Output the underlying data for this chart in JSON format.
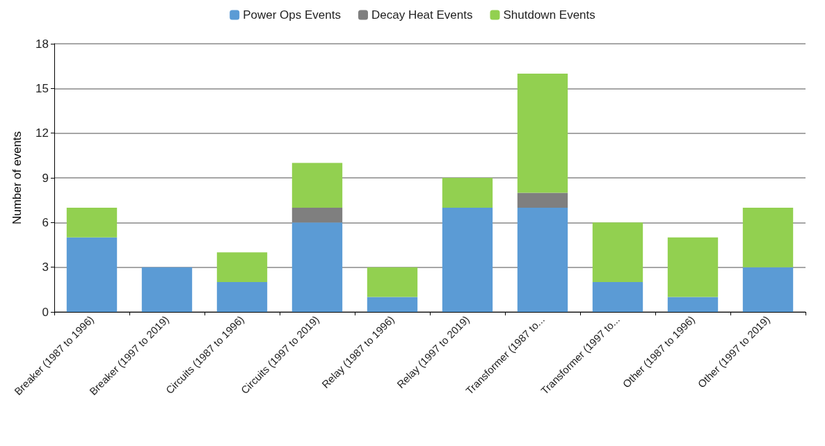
{
  "chart_data": {
    "type": "bar",
    "stacked": true,
    "ylabel": "Number of events",
    "categories": [
      "Breaker (1987 to 1996)",
      "Breaker (1997 to 2019)",
      "Circuits (1987 to 1996)",
      "Circuits (1997 to 2019)",
      "Relay (1987 to 1996)",
      "Relay (1997 to 2019)",
      "Transformer (1987 to...",
      "Transformer (1997 to...",
      "Other (1987 to 1996)",
      "Other (1997 to 2019)"
    ],
    "series": [
      {
        "name": "Power Ops Events",
        "color": "#5b9bd5",
        "values": [
          5,
          3,
          2,
          6,
          1,
          7,
          7,
          2,
          1,
          3
        ]
      },
      {
        "name": "Decay Heat Events",
        "color": "#7f7f7f",
        "values": [
          0,
          0,
          0,
          1,
          0,
          0,
          1,
          0,
          0,
          0
        ]
      },
      {
        "name": "Shutdown Events",
        "color": "#92d050",
        "values": [
          2,
          0,
          2,
          3,
          2,
          2,
          8,
          4,
          4,
          4
        ]
      }
    ],
    "ylim": [
      0,
      18
    ],
    "yticks": [
      0,
      3,
      6,
      9,
      12,
      15,
      18
    ],
    "grid": "y",
    "legend": "top"
  }
}
